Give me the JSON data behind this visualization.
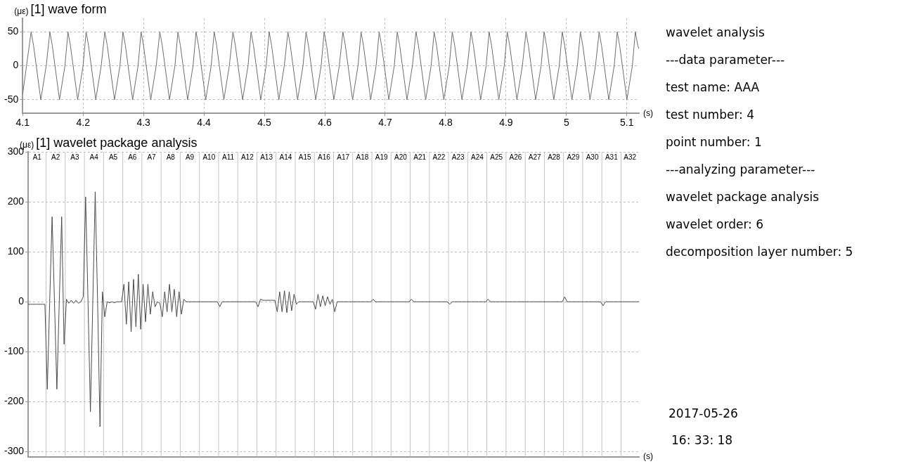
{
  "chart_data": [
    {
      "type": "line",
      "title": "[1] wave form",
      "ylabel": "(με)",
      "xlabel": "(s)",
      "xlim": [
        4.1,
        5.12
      ],
      "xticks": [
        4.1,
        4.2,
        4.3,
        4.4,
        4.5,
        4.6,
        4.7,
        4.8,
        4.9,
        5,
        5.1
      ],
      "ylim": [
        -70,
        70
      ],
      "yticks": [
        -50,
        0,
        50
      ],
      "grid": true,
      "marker": "none",
      "line_style": "solid",
      "series": [
        {
          "color": "#6e6e6e",
          "x": [
            4.1,
            4.114,
            4.118,
            4.13,
            4.139,
            4.145,
            4.149,
            4.161,
            4.17,
            4.175,
            4.179,
            4.191,
            4.2,
            4.205,
            4.209,
            4.221,
            4.23,
            4.236,
            4.24,
            4.252,
            4.261,
            4.266,
            4.27,
            4.282,
            4.291,
            4.296,
            4.3,
            4.312,
            4.321,
            4.327,
            4.331,
            4.343,
            4.352,
            4.357,
            4.361,
            4.373,
            4.382,
            4.387,
            4.391,
            4.403,
            4.412,
            4.417,
            4.421,
            4.433,
            4.442,
            4.448,
            4.452,
            4.464,
            4.473,
            4.478,
            4.482,
            4.494,
            4.503,
            4.508,
            4.512,
            4.524,
            4.533,
            4.539,
            4.543,
            4.555,
            4.564,
            4.569,
            4.573,
            4.585,
            4.594,
            4.599,
            4.603,
            4.615,
            4.624,
            4.63,
            4.634,
            4.646,
            4.655,
            4.66,
            4.664,
            4.676,
            4.685,
            4.69,
            4.694,
            4.706,
            4.715,
            4.72,
            4.724,
            4.736,
            4.745,
            4.751,
            4.755,
            4.767,
            4.776,
            4.781,
            4.785,
            4.797,
            4.806,
            4.811,
            4.815,
            4.827,
            4.836,
            4.842,
            4.846,
            4.858,
            4.867,
            4.872,
            4.876,
            4.888,
            4.897,
            4.902,
            4.906,
            4.918,
            4.927,
            4.933,
            4.937,
            4.949,
            4.958,
            4.963,
            4.967,
            4.979,
            4.988,
            4.993,
            4.997,
            5.009,
            5.018,
            5.023,
            5.027,
            5.039,
            5.048,
            5.054,
            5.058,
            5.07,
            5.079,
            5.084,
            5.088,
            5.1,
            5.109,
            5.114,
            5.118,
            5.12
          ],
          "values": [
            -42,
            50,
            30,
            -50,
            0,
            50,
            30,
            -50,
            0,
            50,
            30,
            -50,
            0,
            50,
            30,
            -50,
            0,
            50,
            30,
            -50,
            0,
            50,
            30,
            -50,
            0,
            50,
            30,
            -50,
            0,
            50,
            30,
            -50,
            0,
            50,
            30,
            -50,
            0,
            50,
            30,
            -50,
            0,
            50,
            30,
            -50,
            0,
            50,
            30,
            -50,
            0,
            50,
            30,
            -50,
            0,
            50,
            30,
            -50,
            0,
            50,
            30,
            -50,
            0,
            50,
            30,
            -50,
            0,
            50,
            30,
            -50,
            0,
            50,
            30,
            -50,
            0,
            50,
            30,
            -50,
            0,
            50,
            30,
            -50,
            0,
            50,
            30,
            -50,
            0,
            50,
            30,
            -50,
            0,
            50,
            30,
            -50,
            0,
            50,
            30,
            -50,
            0,
            50,
            30,
            -50,
            0,
            50,
            30,
            -50,
            0,
            50,
            30,
            -50,
            0,
            50,
            30,
            -50,
            0,
            50,
            30,
            -50,
            0,
            50,
            30,
            -50,
            0,
            50,
            30,
            -50,
            0,
            50,
            30,
            -50,
            0,
            50,
            30,
            -50,
            0,
            50,
            30,
            25
          ]
        }
      ]
    },
    {
      "type": "line",
      "title": "[1] wavelet package analysis",
      "ylabel": "(με)",
      "xlabel": "(s)",
      "tick_labels": "y",
      "categories": [
        null,
        null,
        null,
        null,
        null,
        null,
        null,
        null,
        null,
        null,
        null,
        null,
        null,
        null,
        null,
        null,
        null,
        null,
        null,
        null,
        null,
        null,
        null,
        null,
        null,
        null,
        null,
        null,
        null,
        null,
        null,
        null,
        null,
        null,
        null,
        null,
        null,
        null,
        null,
        null,
        null,
        null,
        null,
        null,
        null,
        null,
        null,
        null,
        null,
        null,
        null,
        null,
        null,
        null,
        null,
        null,
        null,
        null,
        null,
        null,
        null,
        null,
        null,
        null,
        null,
        null,
        null,
        null,
        null,
        null,
        null,
        null,
        null,
        null,
        null,
        null,
        null,
        null,
        null,
        null,
        null,
        null,
        null,
        null,
        null,
        null,
        null,
        null,
        null,
        null,
        null,
        null,
        null,
        null,
        null,
        null,
        null,
        null,
        null,
        null,
        null,
        null,
        null,
        null,
        null,
        null,
        null,
        null,
        null,
        null,
        null,
        null,
        null,
        null,
        null,
        null,
        null,
        null,
        null,
        null,
        null,
        null,
        null,
        null,
        null,
        null,
        null,
        null,
        null,
        null,
        null,
        null,
        null,
        null,
        null,
        null,
        null,
        null,
        null,
        null,
        null,
        null,
        null,
        null,
        null,
        null,
        null,
        null,
        null,
        null,
        null,
        null,
        null,
        null,
        null,
        null,
        null,
        null,
        null,
        null,
        null,
        null,
        null,
        null,
        null,
        null,
        null,
        null,
        null,
        null,
        null,
        null,
        null,
        null,
        null,
        null,
        null,
        null,
        null,
        null,
        null,
        null,
        null,
        null,
        null,
        null,
        null,
        null,
        null,
        null,
        null,
        null,
        null,
        null,
        null,
        null,
        null,
        null,
        null,
        null,
        null,
        null,
        null,
        null,
        null,
        null,
        null,
        null,
        null,
        null,
        null,
        null,
        null,
        null,
        null,
        null,
        null,
        null,
        null,
        null,
        null,
        null,
        null,
        null,
        null,
        null,
        null,
        null,
        null,
        null,
        null,
        null,
        null,
        null,
        null,
        null,
        null,
        null,
        null,
        null,
        null,
        null,
        null,
        null,
        null,
        null,
        null,
        null,
        null,
        null,
        null,
        null,
        null,
        null,
        null,
        null
      ],
      "ylim": [
        -310,
        300
      ],
      "yticks": [
        -300,
        -200,
        -100,
        0,
        100,
        200,
        300
      ],
      "grid": "y",
      "marker": "none",
      "line_style": "solid",
      "annotations": [
        "A1",
        "A2",
        "A3",
        "A4",
        "A5",
        "A6",
        "A7",
        "A8",
        "A9",
        "A10",
        "A11",
        "A12",
        "A13",
        "A14",
        "A15",
        "A16",
        "A17",
        "A18",
        "A19",
        "A20",
        "A21",
        "A22",
        "A23",
        "A24",
        "A25",
        "A26",
        "A27",
        "A28",
        "A29",
        "A30",
        "A31",
        "A32"
      ],
      "series": [
        {
          "color": "#4a4a4a",
          "values": [
            -5,
            -5,
            -5,
            -5,
            -5,
            -5,
            -5,
            -5,
            -175,
            0,
            170,
            0,
            -175,
            0,
            170,
            -85,
            5,
            -3,
            3,
            -3,
            3,
            -3,
            0,
            10,
            210,
            0,
            -220,
            0,
            220,
            0,
            -250,
            20,
            -30,
            0,
            -2,
            0,
            -2,
            0,
            0,
            0,
            35,
            -45,
            40,
            -60,
            45,
            -50,
            55,
            -55,
            35,
            -40,
            35,
            -25,
            20,
            -10,
            0,
            -3,
            -30,
            20,
            -20,
            35,
            -20,
            25,
            -30,
            20,
            -25,
            5,
            0,
            0,
            0,
            0,
            0,
            0,
            0,
            0,
            0,
            0,
            0,
            0,
            0,
            0,
            -10,
            0,
            0,
            0,
            0,
            0,
            0,
            0,
            0,
            0,
            0,
            0,
            0,
            0,
            0,
            0,
            -10,
            5,
            3,
            3,
            3,
            3,
            3,
            3,
            -20,
            20,
            -20,
            22,
            -22,
            20,
            -18,
            15,
            -5,
            0,
            0,
            0,
            0,
            0,
            0,
            0,
            -15,
            15,
            -10,
            12,
            -8,
            10,
            -5,
            5,
            -20,
            0,
            0,
            0,
            0,
            0,
            0,
            0,
            0,
            0,
            0,
            0,
            0,
            0,
            0,
            0,
            5,
            0,
            0,
            0,
            0,
            0,
            0,
            0,
            0,
            0,
            0,
            0,
            0,
            0,
            0,
            0,
            5,
            0,
            0,
            0,
            0,
            0,
            0,
            0,
            0,
            0,
            0,
            0,
            0,
            0,
            0,
            0,
            -5,
            0,
            0,
            0,
            0,
            0,
            0,
            0,
            0,
            0,
            0,
            0,
            0,
            0,
            0,
            0,
            5,
            0,
            0,
            0,
            0,
            0,
            0,
            0,
            0,
            0,
            0,
            0,
            0,
            0,
            0,
            0,
            0,
            0,
            0,
            0,
            0,
            0,
            0,
            0,
            0,
            0,
            0,
            0,
            0,
            0,
            0,
            0,
            10,
            0,
            0,
            0,
            0,
            0,
            0,
            0,
            0,
            0,
            0,
            0,
            0,
            0,
            0,
            0,
            -8,
            0,
            0,
            0,
            0,
            0,
            0,
            0,
            0,
            0,
            0,
            0,
            0,
            0,
            0,
            0
          ]
        }
      ]
    },
    {
      "type": "other",
      "annotations": [
        "wavelet analysis",
        "---data parameter---",
        "test name: AAA",
        "test number: 4",
        "point number: 1",
        "---analyzing parameter---",
        "wavelet package analysis",
        "wavelet order: 6",
        "decomposition layer number: 5",
        "2017-05-26",
        "16: 33: 18"
      ]
    }
  ]
}
